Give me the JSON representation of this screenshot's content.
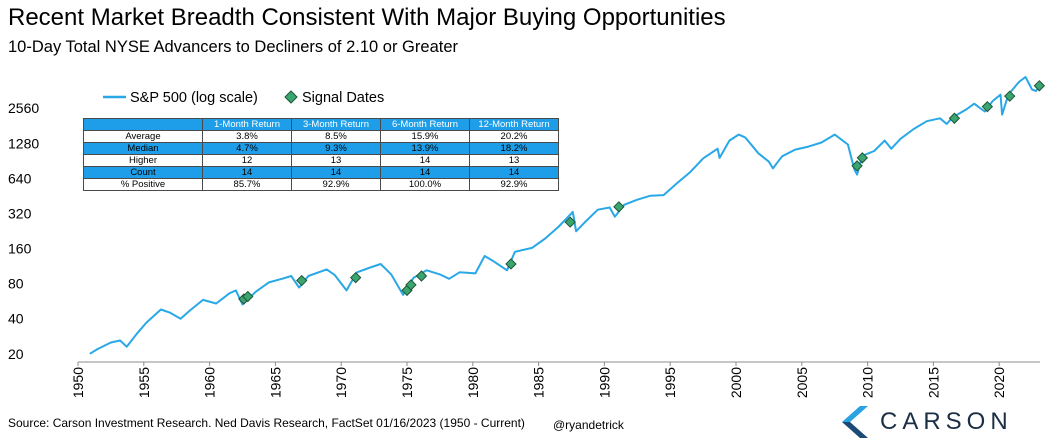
{
  "title": "Recent Market Breadth Consistent With Major Buying Opportunities",
  "subtitle": "10-Day Total NYSE Advancers to Decliners of 2.10 or Greater",
  "legend": {
    "series_label": "S&P 500 (log scale)",
    "markers_label": "Signal Dates"
  },
  "colors": {
    "line": "#29a8e8",
    "marker_fill": "#3aa56f",
    "table_header": "#1e9ee8",
    "logo_blue": "#2aa3e3",
    "logo_text": "#1a2e44"
  },
  "stats_table": {
    "headers": [
      "",
      "1-Month Return",
      "3-Month Return",
      "6-Month Return",
      "12-Month Return"
    ],
    "rows": [
      {
        "label": "Average",
        "values": [
          "3.8%",
          "8.5%",
          "15.9%",
          "20.2%"
        ],
        "highlight": false
      },
      {
        "label": "Median",
        "values": [
          "4.7%",
          "9.3%",
          "13.9%",
          "18.2%"
        ],
        "highlight": true
      },
      {
        "label": "Higher",
        "values": [
          "12",
          "13",
          "14",
          "13"
        ],
        "highlight": false
      },
      {
        "label": "Count",
        "values": [
          "14",
          "14",
          "14",
          "14"
        ],
        "highlight": true
      },
      {
        "label": "% Positive",
        "values": [
          "85.7%",
          "92.9%",
          "100.0%",
          "92.9%"
        ],
        "highlight": false
      }
    ]
  },
  "footer": {
    "source": "Source: Carson Investment Research. Ned Davis Research, FactSet 01/16/2023 (1950 - Current)",
    "handle": "@ryandetrick"
  },
  "logo": {
    "text": "CARSON"
  },
  "chart_data": {
    "type": "line",
    "y_scale": "log",
    "xlim": [
      1950,
      2023.1
    ],
    "ylim": [
      17,
      4300
    ],
    "x_ticks": [
      "1950",
      "1955",
      "1960",
      "1965",
      "1970",
      "1975",
      "1980",
      "1985",
      "1990",
      "1995",
      "2000",
      "2005",
      "2010",
      "2015",
      "2020"
    ],
    "y_ticks": [
      "20",
      "40",
      "80",
      "160",
      "320",
      "640",
      "1280",
      "2560"
    ],
    "grid": false,
    "legend_position": "top-left",
    "series": [
      {
        "name": "S&P 500 (log scale)",
        "points": [
          [
            1950.9,
            20
          ],
          [
            1951.5,
            22
          ],
          [
            1952.5,
            25
          ],
          [
            1953.2,
            26
          ],
          [
            1953.7,
            23
          ],
          [
            1954.5,
            30
          ],
          [
            1955.2,
            37
          ],
          [
            1956.3,
            48
          ],
          [
            1957.0,
            45
          ],
          [
            1957.8,
            40
          ],
          [
            1958.5,
            47
          ],
          [
            1959.5,
            58
          ],
          [
            1960.5,
            54
          ],
          [
            1961.5,
            66
          ],
          [
            1962.0,
            70
          ],
          [
            1962.5,
            53
          ],
          [
            1963.5,
            68
          ],
          [
            1964.5,
            82
          ],
          [
            1965.5,
            88
          ],
          [
            1966.2,
            93
          ],
          [
            1966.8,
            74
          ],
          [
            1967.5,
            93
          ],
          [
            1968.9,
            106
          ],
          [
            1969.5,
            95
          ],
          [
            1970.4,
            70
          ],
          [
            1971.2,
            100
          ],
          [
            1972.2,
            110
          ],
          [
            1973.0,
            118
          ],
          [
            1973.8,
            96
          ],
          [
            1974.7,
            64
          ],
          [
            1975.5,
            90
          ],
          [
            1976.5,
            104
          ],
          [
            1977.5,
            96
          ],
          [
            1978.2,
            88
          ],
          [
            1979.0,
            100
          ],
          [
            1980.2,
            98
          ],
          [
            1980.9,
            138
          ],
          [
            1981.5,
            126
          ],
          [
            1982.6,
            104
          ],
          [
            1983.2,
            150
          ],
          [
            1984.5,
            162
          ],
          [
            1985.5,
            195
          ],
          [
            1986.5,
            245
          ],
          [
            1987.6,
            330
          ],
          [
            1987.85,
            225
          ],
          [
            1988.5,
            268
          ],
          [
            1989.5,
            345
          ],
          [
            1990.4,
            360
          ],
          [
            1990.8,
            300
          ],
          [
            1991.5,
            380
          ],
          [
            1992.5,
            420
          ],
          [
            1993.5,
            455
          ],
          [
            1994.5,
            460
          ],
          [
            1995.5,
            580
          ],
          [
            1996.5,
            720
          ],
          [
            1997.5,
            950
          ],
          [
            1998.6,
            1150
          ],
          [
            1998.75,
            960
          ],
          [
            1999.5,
            1350
          ],
          [
            2000.2,
            1520
          ],
          [
            2000.7,
            1440
          ],
          [
            2001.7,
            1050
          ],
          [
            2002.5,
            890
          ],
          [
            2002.8,
            780
          ],
          [
            2003.5,
            990
          ],
          [
            2004.5,
            1130
          ],
          [
            2005.5,
            1200
          ],
          [
            2006.5,
            1300
          ],
          [
            2007.5,
            1520
          ],
          [
            2008.5,
            1250
          ],
          [
            2009.0,
            760
          ],
          [
            2009.2,
            690
          ],
          [
            2009.6,
            1000
          ],
          [
            2010.5,
            1100
          ],
          [
            2011.3,
            1350
          ],
          [
            2011.8,
            1150
          ],
          [
            2012.5,
            1400
          ],
          [
            2013.5,
            1700
          ],
          [
            2014.5,
            1980
          ],
          [
            2015.5,
            2100
          ],
          [
            2016.0,
            1880
          ],
          [
            2016.5,
            2150
          ],
          [
            2017.5,
            2500
          ],
          [
            2018.1,
            2800
          ],
          [
            2018.9,
            2400
          ],
          [
            2019.5,
            2950
          ],
          [
            2020.1,
            3350
          ],
          [
            2020.22,
            2260
          ],
          [
            2020.7,
            3350
          ],
          [
            2021.5,
            4300
          ],
          [
            2022.0,
            4750
          ],
          [
            2022.5,
            3700
          ],
          [
            2022.8,
            3600
          ],
          [
            2023.05,
            3990
          ]
        ]
      }
    ],
    "markers": {
      "name": "Signal Dates",
      "points": [
        [
          1962.6,
          59
        ],
        [
          1962.9,
          62
        ],
        [
          1967.0,
          85
        ],
        [
          1971.1,
          90
        ],
        [
          1975.0,
          70
        ],
        [
          1975.3,
          78
        ],
        [
          1976.1,
          93
        ],
        [
          1982.9,
          118
        ],
        [
          1987.4,
          270
        ],
        [
          1991.1,
          365
        ],
        [
          2009.2,
          820
        ],
        [
          2009.6,
          960
        ],
        [
          2016.6,
          2100
        ],
        [
          2019.1,
          2640
        ],
        [
          2020.8,
          3250
        ],
        [
          2023.05,
          3990
        ]
      ]
    }
  }
}
